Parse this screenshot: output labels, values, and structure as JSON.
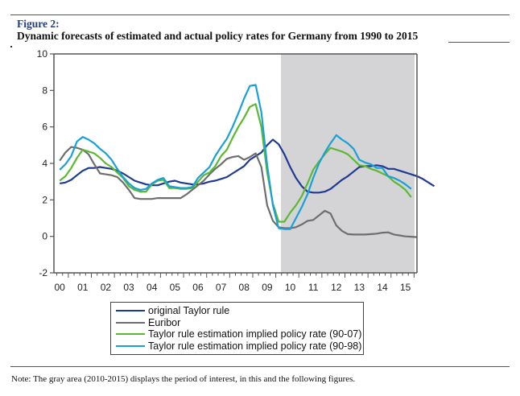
{
  "figure": {
    "label": "Figure 2:",
    "title": "Dynamic forecasts of estimated and actual policy rates for Germany from 1990 to 2015",
    "note": "Note: The gray area (2010-2015) displays the period of interest, in this and the following figures."
  },
  "chart_data": {
    "type": "line",
    "title": "Dynamic forecasts of estimated and actual policy rates for Germany from 1990 to 2015",
    "xlabel": "",
    "ylabel": "",
    "x_tick_labels": [
      "00",
      "01",
      "02",
      "03",
      "04",
      "05",
      "06",
      "07",
      "08",
      "09",
      "10",
      "11",
      "12",
      "13",
      "14",
      "15"
    ],
    "y_ticks": [
      -2,
      0,
      2,
      4,
      6,
      8,
      10
    ],
    "ylim": [
      -2,
      10
    ],
    "xlim": [
      1999.75,
      2015.5
    ],
    "grid": false,
    "legend_position": "bottom",
    "shaded_region": {
      "from": 2009.6,
      "to": 2015.45,
      "color": "#d4d3d6",
      "label": "period of interest (2010-2015)"
    },
    "x_start": 2000.0,
    "x_step": 0.25,
    "series": [
      {
        "name": "original Taylor rule",
        "color": "#1f3a93",
        "values": [
          2.9,
          2.95,
          3.1,
          3.35,
          3.6,
          3.75,
          3.75,
          3.8,
          3.75,
          3.7,
          3.6,
          3.45,
          3.25,
          3.05,
          2.95,
          2.85,
          2.8,
          2.8,
          2.9,
          3.0,
          3.05,
          2.95,
          2.9,
          2.85,
          2.85,
          2.9,
          3.0,
          3.05,
          3.15,
          3.25,
          3.45,
          3.65,
          3.85,
          4.2,
          4.4,
          4.6,
          5.0,
          5.3,
          5.05,
          4.5,
          3.8,
          3.2,
          2.75,
          2.45,
          2.4,
          2.4,
          2.45,
          2.6,
          2.85,
          3.1,
          3.3,
          3.55,
          3.8,
          3.85,
          3.85,
          3.9,
          3.85,
          3.7,
          3.7,
          3.6,
          3.5,
          3.4,
          3.3,
          3.15,
          2.95,
          2.75
        ]
      },
      {
        "name": "Euribor",
        "color": "#6e6e6e",
        "values": [
          4.15,
          4.6,
          4.9,
          4.85,
          4.75,
          4.5,
          3.95,
          3.45,
          3.4,
          3.35,
          3.25,
          2.95,
          2.55,
          2.1,
          2.05,
          2.05,
          2.05,
          2.1,
          2.1,
          2.1,
          2.1,
          2.1,
          2.3,
          2.55,
          2.8,
          3.05,
          3.4,
          3.7,
          3.95,
          4.25,
          4.35,
          4.4,
          4.2,
          4.35,
          4.55,
          3.8,
          1.7,
          0.85,
          0.5,
          0.45,
          0.45,
          0.5,
          0.65,
          0.85,
          0.9,
          1.15,
          1.4,
          1.25,
          0.6,
          0.3,
          0.12,
          0.1,
          0.1,
          0.1,
          0.12,
          0.15,
          0.2,
          0.22,
          0.1,
          0.05,
          0.0,
          -0.02,
          -0.04
        ]
      },
      {
        "name": "Taylor rule estimation implied policy rate (90-07)",
        "color": "#5cb833",
        "values": [
          3.05,
          3.3,
          3.75,
          4.3,
          4.75,
          4.65,
          4.55,
          4.3,
          4.0,
          3.8,
          3.5,
          3.2,
          2.75,
          2.55,
          2.45,
          2.45,
          2.85,
          3.05,
          3.1,
          2.65,
          2.65,
          2.6,
          2.6,
          2.65,
          3.0,
          3.35,
          3.5,
          3.85,
          4.4,
          4.75,
          5.4,
          6.0,
          6.5,
          7.1,
          7.25,
          6.0,
          3.5,
          1.8,
          0.8,
          0.8,
          1.3,
          1.7,
          2.2,
          2.9,
          3.65,
          4.1,
          4.5,
          4.85,
          4.75,
          4.65,
          4.5,
          4.2,
          3.9,
          3.85,
          3.7,
          3.6,
          3.45,
          3.3,
          3.0,
          2.8,
          2.55,
          2.15
        ]
      },
      {
        "name": "Taylor rule estimation implied policy rate (90-98)",
        "color": "#1aa0d8",
        "values": [
          3.65,
          3.95,
          4.4,
          5.2,
          5.45,
          5.3,
          5.1,
          4.8,
          4.55,
          4.2,
          3.7,
          3.25,
          2.9,
          2.65,
          2.55,
          2.6,
          2.9,
          3.1,
          3.2,
          2.75,
          2.7,
          2.65,
          2.65,
          2.7,
          3.2,
          3.5,
          3.8,
          4.4,
          4.9,
          5.35,
          6.0,
          6.75,
          7.55,
          8.25,
          8.3,
          6.8,
          3.9,
          1.7,
          0.45,
          0.4,
          0.4,
          1.0,
          1.6,
          2.3,
          3.2,
          4.0,
          4.6,
          5.1,
          5.55,
          5.3,
          5.1,
          4.8,
          4.2,
          4.05,
          3.95,
          3.75,
          3.75,
          3.3,
          3.2,
          3.05,
          2.85,
          2.6
        ]
      }
    ]
  },
  "legend": {
    "items": [
      {
        "label": "original Taylor rule",
        "color": "#1f3a93"
      },
      {
        "label": "Euribor",
        "color": "#6e6e6e"
      },
      {
        "label": "Taylor rule estimation implied policy rate (90-07)",
        "color": "#5cb833"
      },
      {
        "label": "Taylor rule estimation implied policy rate (90-98)",
        "color": "#1aa0d8"
      }
    ]
  }
}
